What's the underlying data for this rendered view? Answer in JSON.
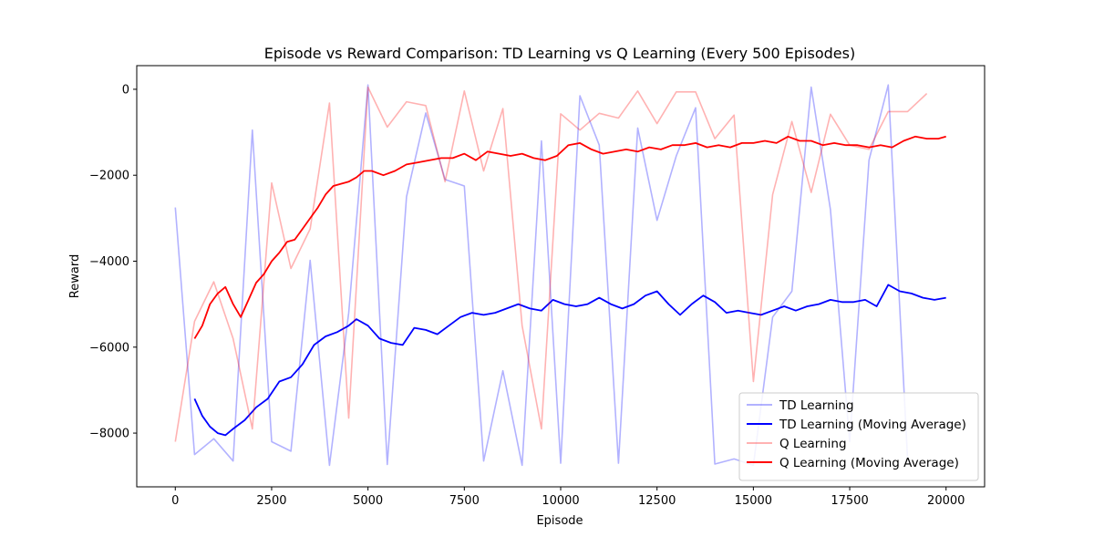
{
  "chart_data": {
    "type": "line",
    "title": "Episode vs Reward Comparison: TD Learning vs Q Learning (Every 500 Episodes)",
    "xlabel": "Episode",
    "ylabel": "Reward",
    "xlim": [
      -1000,
      21000
    ],
    "ylim": [
      -9250,
      550
    ],
    "xticks": [
      0,
      2500,
      5000,
      7500,
      10000,
      12500,
      15000,
      17500,
      20000
    ],
    "xtick_labels": [
      "0",
      "2500",
      "5000",
      "7500",
      "10000",
      "12500",
      "15000",
      "17500",
      "20000"
    ],
    "yticks": [
      -8000,
      -6000,
      -4000,
      -2000,
      0
    ],
    "ytick_labels": [
      "−8000",
      "−6000",
      "−4000",
      "−2000",
      "0"
    ],
    "grid": false,
    "legend_position": "lower-right",
    "series": [
      {
        "name": "TD Learning",
        "color": "#0000ff",
        "alpha": 0.3,
        "x": [
          0,
          500,
          1000,
          1500,
          2000,
          2500,
          3000,
          3500,
          4000,
          4500,
          5000,
          5500,
          6000,
          6500,
          7000,
          7500,
          8000,
          8500,
          9000,
          9500,
          10000,
          10500,
          11000,
          11500,
          12000,
          12500,
          13000,
          13500,
          14000,
          14500,
          15000,
          15500,
          16000,
          16500,
          17000,
          17500,
          18000,
          18500,
          19000
        ],
        "y": [
          -2750,
          -8500,
          -8130,
          -8650,
          -950,
          -8200,
          -8420,
          -3980,
          -8750,
          -5200,
          100,
          -8730,
          -2500,
          -550,
          -2100,
          -2250,
          -8650,
          -6550,
          -8750,
          -1200,
          -8700,
          -150,
          -1300,
          -8700,
          -900,
          -3050,
          -1550,
          -430,
          -8720,
          -8600,
          -8750,
          -5300,
          -4700,
          50,
          -2800,
          -8200,
          -1650,
          100,
          -8600
        ]
      },
      {
        "name": "TD Learning (Moving Average)",
        "color": "#0000ff",
        "alpha": 1,
        "x": [
          500,
          700,
          900,
          1100,
          1300,
          1500,
          1800,
          2100,
          2400,
          2700,
          3000,
          3300,
          3600,
          3900,
          4200,
          4500,
          4700,
          5000,
          5300,
          5600,
          5900,
          6200,
          6500,
          6800,
          7100,
          7400,
          7700,
          8000,
          8300,
          8600,
          8900,
          9200,
          9500,
          9800,
          10100,
          10400,
          10700,
          11000,
          11300,
          11600,
          11900,
          12200,
          12500,
          12800,
          13100,
          13400,
          13700,
          14000,
          14300,
          14600,
          14900,
          15200,
          15500,
          15800,
          16100,
          16400,
          16700,
          17000,
          17300,
          17600,
          17900,
          18200,
          18500,
          18800,
          19100,
          19400,
          19700,
          20000
        ],
        "y": [
          -7200,
          -7600,
          -7850,
          -8000,
          -8050,
          -7900,
          -7700,
          -7400,
          -7200,
          -6800,
          -6700,
          -6400,
          -5950,
          -5750,
          -5650,
          -5500,
          -5350,
          -5500,
          -5800,
          -5900,
          -5950,
          -5550,
          -5600,
          -5700,
          -5500,
          -5300,
          -5200,
          -5250,
          -5200,
          -5100,
          -5000,
          -5100,
          -5150,
          -4900,
          -5000,
          -5050,
          -5000,
          -4850,
          -5000,
          -5100,
          -5000,
          -4800,
          -4700,
          -5000,
          -5250,
          -5000,
          -4800,
          -4950,
          -5200,
          -5150,
          -5200,
          -5250,
          -5150,
          -5050,
          -5150,
          -5050,
          -5000,
          -4900,
          -4950,
          -4950,
          -4900,
          -5050,
          -4550,
          -4700,
          -4750,
          -4850,
          -4900,
          -4850
        ]
      },
      {
        "name": "Q Learning",
        "color": "#ff0000",
        "alpha": 0.3,
        "x": [
          0,
          500,
          1000,
          1500,
          2000,
          2500,
          3000,
          3500,
          4000,
          4500,
          5000,
          5500,
          6000,
          6500,
          7000,
          7500,
          8000,
          8500,
          9000,
          9500,
          10000,
          10500,
          11000,
          11500,
          12000,
          12500,
          13000,
          13500,
          14000,
          14500,
          15000,
          15500,
          16000,
          16500,
          17000,
          17500,
          18000,
          18500,
          19000,
          19500
        ],
        "y": [
          -8200,
          -5400,
          -4480,
          -5800,
          -7900,
          -2180,
          -4170,
          -3250,
          -320,
          -7650,
          50,
          -880,
          -290,
          -380,
          -2150,
          -40,
          -1900,
          -450,
          -5500,
          -7900,
          -570,
          -950,
          -560,
          -670,
          -40,
          -800,
          -60,
          -60,
          -1150,
          -600,
          -6800,
          -2450,
          -750,
          -2400,
          -580,
          -1300,
          -1400,
          -520,
          -520,
          -100
        ]
      },
      {
        "name": "Q Learning (Moving Average)",
        "color": "#ff0000",
        "alpha": 1,
        "x": [
          500,
          700,
          900,
          1100,
          1300,
          1500,
          1700,
          1900,
          2100,
          2300,
          2500,
          2700,
          2900,
          3100,
          3300,
          3500,
          3700,
          3900,
          4100,
          4300,
          4500,
          4700,
          4900,
          5100,
          5400,
          5700,
          6000,
          6300,
          6600,
          6900,
          7200,
          7500,
          7800,
          8100,
          8400,
          8700,
          9000,
          9300,
          9600,
          9900,
          10200,
          10500,
          10800,
          11100,
          11400,
          11700,
          12000,
          12300,
          12600,
          12900,
          13200,
          13500,
          13800,
          14100,
          14400,
          14700,
          15000,
          15300,
          15600,
          15900,
          16200,
          16500,
          16800,
          17100,
          17400,
          17700,
          18000,
          18300,
          18600,
          18900,
          19200,
          19500,
          19800,
          20000
        ],
        "y": [
          -5800,
          -5500,
          -5000,
          -4750,
          -4600,
          -5000,
          -5300,
          -4900,
          -4500,
          -4300,
          -4000,
          -3800,
          -3550,
          -3500,
          -3250,
          -3000,
          -2750,
          -2450,
          -2250,
          -2200,
          -2150,
          -2050,
          -1900,
          -1900,
          -2000,
          -1900,
          -1750,
          -1700,
          -1650,
          -1600,
          -1600,
          -1500,
          -1650,
          -1450,
          -1500,
          -1550,
          -1500,
          -1600,
          -1650,
          -1550,
          -1300,
          -1250,
          -1400,
          -1500,
          -1450,
          -1400,
          -1450,
          -1350,
          -1400,
          -1300,
          -1300,
          -1250,
          -1350,
          -1300,
          -1350,
          -1250,
          -1250,
          -1200,
          -1250,
          -1100,
          -1200,
          -1200,
          -1300,
          -1250,
          -1300,
          -1300,
          -1350,
          -1300,
          -1350,
          -1200,
          -1100,
          -1150,
          -1150,
          -1100
        ]
      }
    ]
  }
}
